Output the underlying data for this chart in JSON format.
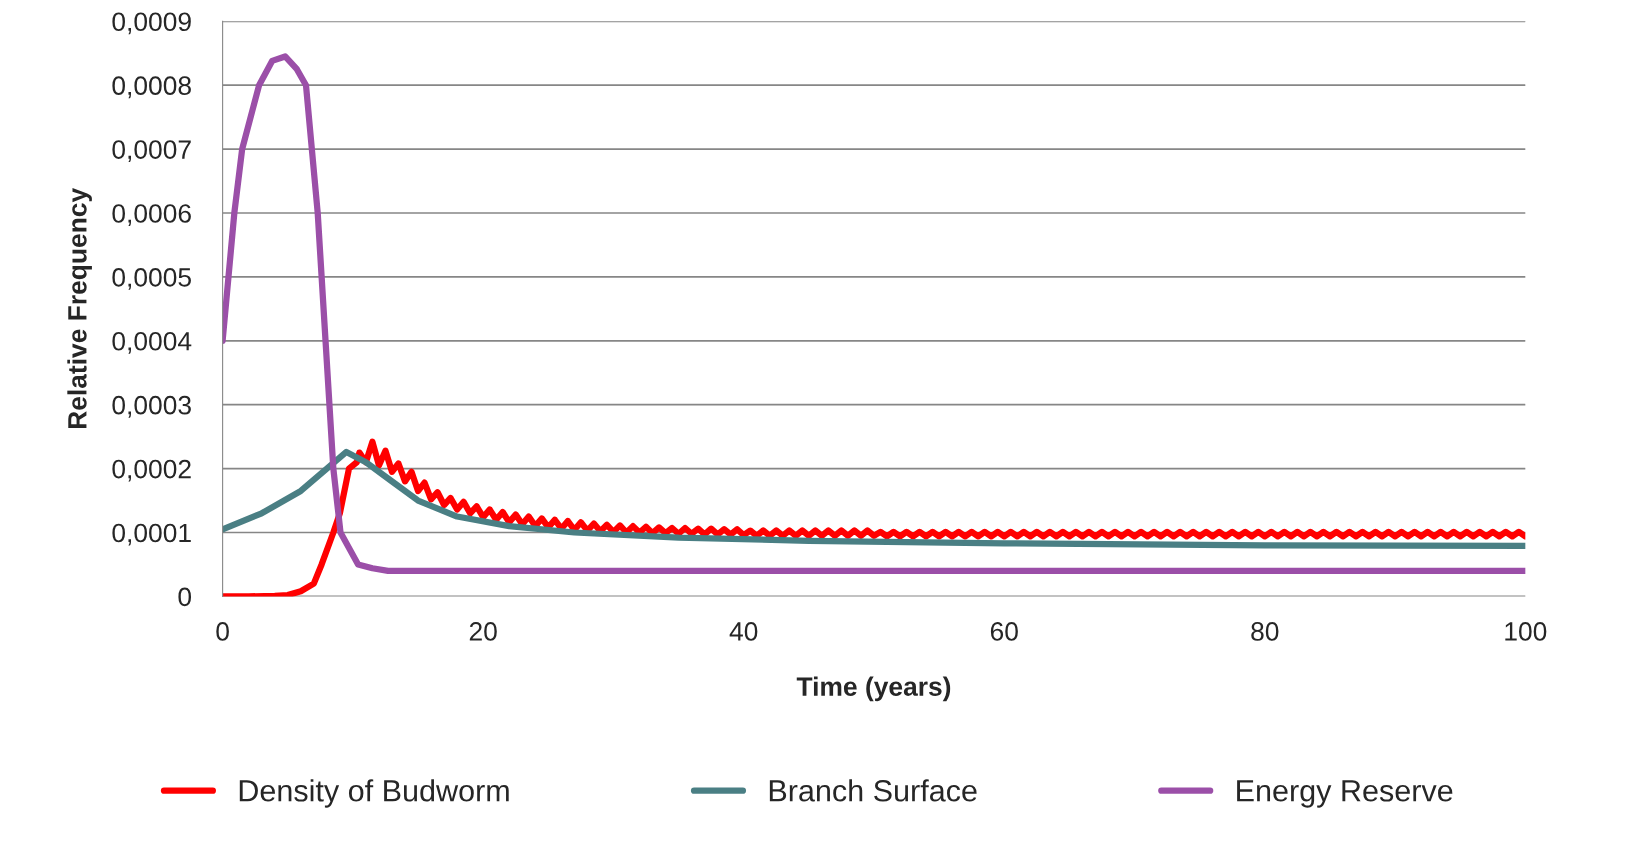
{
  "chart_data": {
    "type": "line",
    "xlabel": "Time (years)",
    "ylabel": "Relative Frequency",
    "xlim": [
      0,
      100
    ],
    "xticks": [
      0,
      20,
      40,
      60,
      80,
      100
    ],
    "ylim": [
      0,
      0.0009
    ],
    "yticks": [
      0,
      {
        "value": 0.0001,
        "label": "0,0001"
      },
      {
        "value": 0.0002,
        "label": "0,0002"
      },
      {
        "value": 0.0003,
        "label": "0,0003"
      },
      {
        "value": 0.0004,
        "label": "0,0004"
      },
      {
        "value": 0.0005,
        "label": "0,0005"
      },
      {
        "value": 0.0006,
        "label": "0,0006"
      },
      {
        "value": 0.0007,
        "label": "0,0007"
      },
      {
        "value": 0.0008,
        "label": "0,0008"
      },
      {
        "value": 0.0009,
        "label": "0,0009"
      }
    ],
    "grid": "y",
    "legend": "bottom",
    "marker": "none",
    "line_style": "solid",
    "series": [
      {
        "name": "Density of Budworm",
        "color": "#ff0000",
        "x": [
          0,
          2,
          4,
          5,
          6,
          7,
          7.6,
          8.5,
          9,
          9.7,
          10.3,
          10.5,
          11,
          11.5,
          12,
          12.5,
          13,
          13.5,
          14,
          14.5,
          15,
          15.5,
          16,
          16.5,
          17,
          17.5,
          18,
          18.5,
          19,
          19.5,
          20,
          20.5,
          21,
          21.5,
          22,
          22.5,
          23,
          23.5,
          24,
          24.5,
          25,
          25.5,
          26,
          26.5,
          27,
          27.5,
          28,
          28.5,
          29,
          29.5,
          30,
          30.5,
          31,
          31.5,
          32,
          32.5,
          33,
          33.5,
          34,
          34.5,
          35,
          35.5,
          36,
          36.5,
          37,
          37.5,
          38,
          38.5,
          39,
          39.5,
          40,
          40.5,
          41,
          41.5,
          42,
          42.5,
          43,
          43.5,
          44,
          44.5,
          45,
          45.5,
          46,
          46.5,
          47,
          47.5,
          48,
          48.5,
          49,
          49.5,
          50,
          50.5,
          51,
          51.5,
          52,
          52.5,
          53,
          53.5,
          54,
          54.5,
          55,
          55.5,
          56,
          56.5,
          57,
          57.5,
          58,
          58.5,
          59,
          59.5,
          60,
          60.5,
          61,
          61.5,
          62,
          62.5,
          63,
          63.5,
          64,
          64.5,
          65,
          65.5,
          66,
          66.5,
          67,
          67.5,
          68,
          68.5,
          69,
          69.5,
          70,
          70.5,
          71,
          71.5,
          72,
          72.5,
          73,
          73.5,
          74,
          74.5,
          75,
          75.5,
          76,
          76.5,
          77,
          77.5,
          78,
          78.5,
          79,
          79.5,
          80,
          80.5,
          81,
          81.5,
          82,
          82.5,
          83,
          83.5,
          84,
          84.5,
          85,
          85.5,
          86,
          86.5,
          87,
          87.5,
          88,
          88.5,
          89,
          89.5,
          90,
          90.5,
          91,
          91.5,
          92,
          92.5,
          93,
          93.5,
          94,
          94.5,
          95,
          95.5,
          96,
          96.5,
          97,
          97.5,
          98,
          98.5,
          99,
          99.5,
          100
        ],
        "values": [
          0,
          0,
          1e-06,
          2e-06,
          8e-06,
          2e-05,
          5e-05,
          0.0001,
          0.00013,
          0.0002,
          0.00021,
          0.000225,
          0.00021,
          0.000242,
          0.000205,
          0.000228,
          0.000195,
          0.000208,
          0.00018,
          0.000195,
          0.000165,
          0.000178,
          0.000152,
          0.000163,
          0.000143,
          0.000154,
          0.000136,
          0.000148,
          0.00013,
          0.000141,
          0.000124,
          0.000136,
          0.00012,
          0.000132,
          0.000116,
          0.000128,
          0.000113,
          0.000125,
          0.00011,
          0.000122,
          0.000108,
          0.00012,
          0.000106,
          0.000118,
          0.000104,
          0.000116,
          0.000103,
          0.000114,
          0.000102,
          0.000112,
          0.000101,
          0.000111,
          0.0001,
          0.00011,
          0.0001,
          0.000109,
          9.9e-05,
          0.000108,
          9.9e-05,
          0.000107,
          9.8e-05,
          0.000107,
          9.8e-05,
          0.000106,
          9.7e-05,
          0.000106,
          9.7e-05,
          0.000105,
          9.7e-05,
          0.000105,
          9.6e-05,
          0.000103,
          9.5e-05,
          0.000103,
          9.5e-05,
          0.000103,
          9.5e-05,
          0.000103,
          9.5e-05,
          0.000103,
          9.5e-05,
          0.000103,
          9.5e-05,
          0.000103,
          9.5e-05,
          0.000103,
          9.5e-05,
          0.000103,
          9.5e-05,
          0.000103,
          9.5e-05,
          0.000101,
          9.4e-05,
          0.000101,
          9.4e-05,
          0.000101,
          9.4e-05,
          0.000101,
          9.4e-05,
          0.000101,
          9.4e-05,
          0.000101,
          9.4e-05,
          0.000101,
          9.4e-05,
          0.000101,
          9.4e-05,
          0.000101,
          9.4e-05,
          0.000101,
          9.4e-05,
          0.000101,
          9.4e-05,
          0.000101,
          9.4e-05,
          0.000101,
          9.4e-05,
          0.000101,
          9.4e-05,
          0.000101,
          9.4e-05,
          0.000101,
          9.4e-05,
          0.000101,
          9.4e-05,
          0.000101,
          9.4e-05,
          0.000101,
          9.4e-05,
          0.000101,
          9.4e-05,
          0.000101,
          9.4e-05,
          0.000101,
          9.4e-05,
          0.000101,
          9.4e-05,
          0.000101,
          9.4e-05,
          0.000101,
          9.4e-05,
          0.000101,
          9.4e-05,
          0.000101,
          9.4e-05,
          0.000101,
          9.4e-05,
          0.000101,
          9.4e-05,
          0.000101,
          9.4e-05,
          0.000101,
          9.4e-05,
          0.000101,
          9.4e-05,
          0.000101,
          9.4e-05,
          0.000101,
          9.4e-05,
          0.000101,
          9.4e-05,
          0.000101,
          9.4e-05,
          0.000101,
          9.4e-05,
          0.000101,
          9.4e-05,
          0.000101,
          9.4e-05,
          0.000101,
          9.4e-05,
          0.000101,
          9.4e-05,
          0.000101,
          9.4e-05,
          0.000101,
          9.4e-05,
          0.000101,
          9.4e-05,
          0.000101,
          9.4e-05,
          0.000101,
          9.4e-05,
          0.000101,
          9.4e-05,
          0.000101,
          9.4e-05,
          0.000101,
          9.4e-05,
          0.000101,
          9.4e-05
        ]
      },
      {
        "name": "Branch Surface",
        "color": "#4a7f84",
        "x": [
          0,
          3,
          6,
          8,
          9.5,
          11,
          13,
          15,
          18,
          22,
          27,
          35,
          45,
          60,
          80,
          100
        ],
        "values": [
          0.000105,
          0.00013,
          0.000165,
          0.0002,
          0.000226,
          0.00021,
          0.00018,
          0.00015,
          0.000125,
          0.00011,
          0.0001,
          9.2e-05,
          8.7e-05,
          8.3e-05,
          8e-05,
          7.9e-05
        ]
      },
      {
        "name": "Energy Reserve",
        "color": "#9b4fa8",
        "x": [
          0,
          0.9,
          1.5,
          2.8,
          3.8,
          4.8,
          5.7,
          6.4,
          7.3,
          7.9,
          8.5,
          9.05,
          10.4,
          11.5,
          12.7,
          20,
          60,
          100
        ],
        "values": [
          0.0004,
          0.0006,
          0.0007,
          0.0008,
          0.000838,
          0.000845,
          0.000825,
          0.0008,
          0.0006,
          0.0004,
          0.0002,
          0.0001,
          5e-05,
          4.4e-05,
          4e-05,
          4e-05,
          4e-05,
          4e-05
        ]
      }
    ]
  }
}
